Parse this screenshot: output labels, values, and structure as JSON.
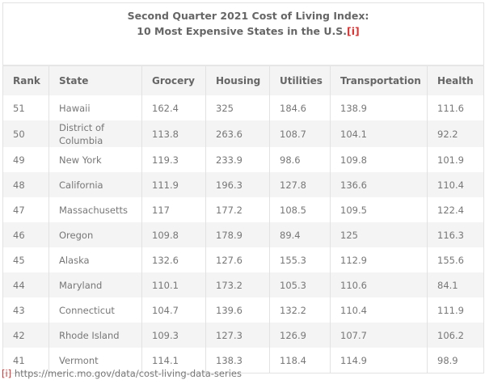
{
  "title_line1": "Second Quarter 2021 Cost of Living Index:",
  "title_line2": "10 Most Expensive States in the U.S.",
  "ref_mark": "[i]",
  "headers": [
    "Rank",
    "State",
    "Grocery",
    "Housing",
    "Utilities",
    "Transportation",
    "Health"
  ],
  "rows": [
    [
      "51",
      "Hawaii",
      "162.4",
      "325",
      "184.6",
      "138.9",
      "111.6"
    ],
    [
      "50",
      "District of Columbia",
      "113.8",
      "263.6",
      "108.7",
      "104.1",
      "92.2"
    ],
    [
      "49",
      "New York",
      "119.3",
      "233.9",
      "98.6",
      "109.8",
      "101.9"
    ],
    [
      "48",
      "California",
      "111.9",
      "196.3",
      "127.8",
      "136.6",
      "110.4"
    ],
    [
      "47",
      "Massachusetts",
      "117",
      "177.2",
      "108.5",
      "109.5",
      "122.4"
    ],
    [
      "46",
      "Oregon",
      "109.8",
      "178.9",
      "89.4",
      "125",
      "116.3"
    ],
    [
      "45",
      "Alaska",
      "132.6",
      "127.6",
      "155.3",
      "112.9",
      "155.6"
    ],
    [
      "44",
      "Maryland",
      "110.1",
      "173.2",
      "105.3",
      "110.6",
      "84.1"
    ],
    [
      "43",
      "Connecticut",
      "104.7",
      "139.6",
      "132.2",
      "110.4",
      "111.9"
    ],
    [
      "42",
      "Rhode Island",
      "109.3",
      "127.3",
      "126.9",
      "107.7",
      "106.2"
    ],
    [
      "41",
      "Vermont",
      "114.1",
      "138.3",
      "118.4",
      "114.9",
      "98.9"
    ]
  ],
  "footnote": {
    "mark": "[i]",
    "url": "https://meric.mo.gov/data/cost-living-data-series"
  }
}
